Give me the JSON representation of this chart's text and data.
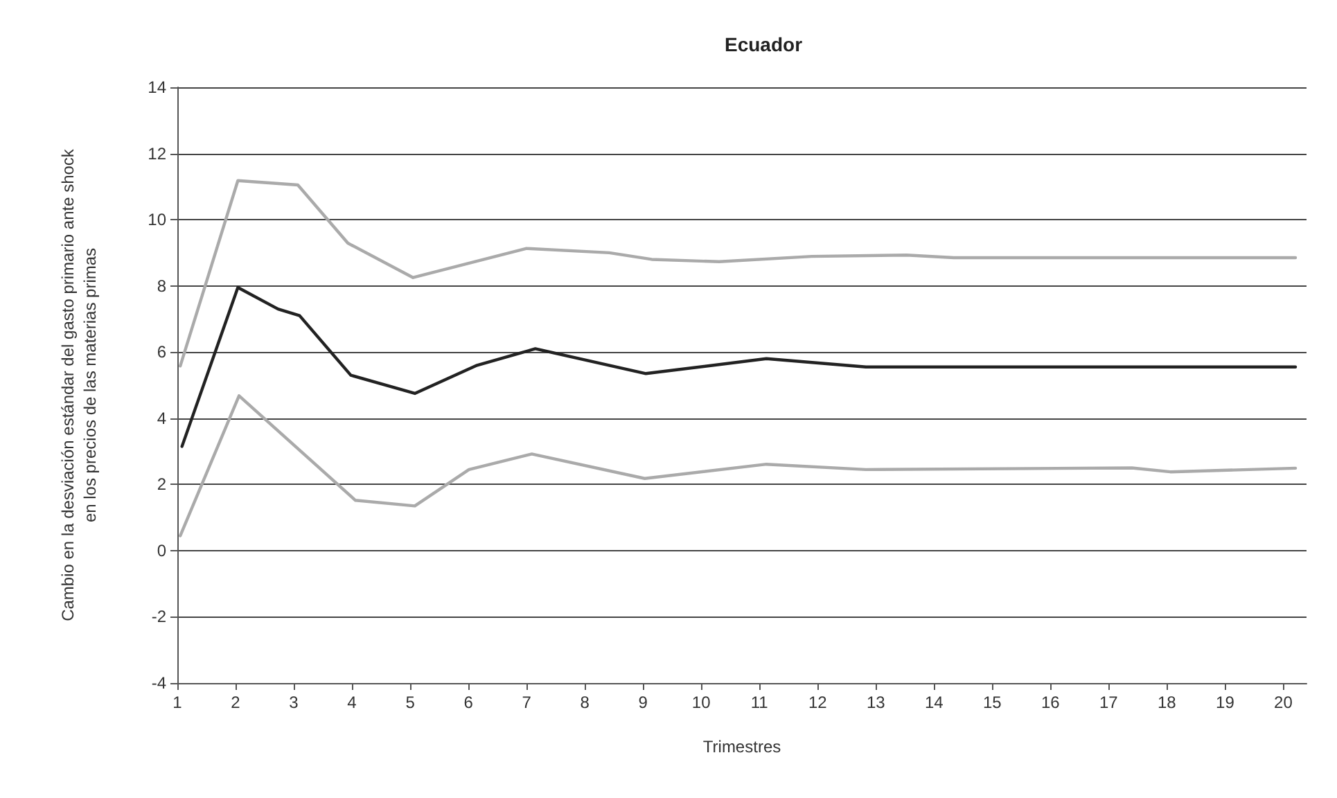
{
  "chart_data": {
    "type": "line",
    "title": "Ecuador",
    "xlabel": "Trimestres",
    "ylabel": "Cambio en la desviación estándar del gasto primario ante shock\nen los precios de las materias primas",
    "xlim": [
      1,
      20.4
    ],
    "xticks": [
      1,
      2,
      3,
      4,
      5,
      6,
      7,
      8,
      9,
      10,
      11,
      12,
      13,
      14,
      15,
      16,
      17,
      18,
      19,
      20
    ],
    "ylim": [
      -4,
      14
    ],
    "yticks": [
      -4,
      -2,
      0,
      2,
      4,
      6,
      8,
      10,
      12,
      14
    ],
    "grid": "y",
    "marker": "none",
    "line_style": "solid",
    "series": [
      {
        "color": "#aaaaaa",
        "x": [
          1.05,
          2.04,
          3.07,
          3.93,
          5.05,
          7.0,
          8.42,
          9.15,
          10.31,
          11.9,
          13.53,
          14.34,
          20.21
        ],
        "values": [
          5.58,
          11.18,
          11.05,
          9.29,
          8.25,
          9.13,
          9.0,
          8.8,
          8.73,
          8.89,
          8.93,
          8.85,
          8.85
        ]
      },
      {
        "color": "#222222",
        "x": [
          1.08,
          2.04,
          2.73,
          3.1,
          3.98,
          5.08,
          6.15,
          7.15,
          9.05,
          11.12,
          12.83,
          20.21
        ],
        "values": [
          3.15,
          7.95,
          7.3,
          7.1,
          5.3,
          4.75,
          5.6,
          6.1,
          5.35,
          5.8,
          5.55,
          5.55
        ]
      },
      {
        "color": "#aaaaaa",
        "x": [
          1.05,
          2.06,
          4.06,
          5.08,
          6.01,
          7.09,
          9.03,
          11.12,
          12.83,
          17.4,
          18.06,
          20.21
        ],
        "values": [
          0.45,
          4.68,
          1.52,
          1.35,
          2.45,
          2.92,
          2.18,
          2.61,
          2.45,
          2.5,
          2.38,
          2.49
        ]
      }
    ]
  }
}
